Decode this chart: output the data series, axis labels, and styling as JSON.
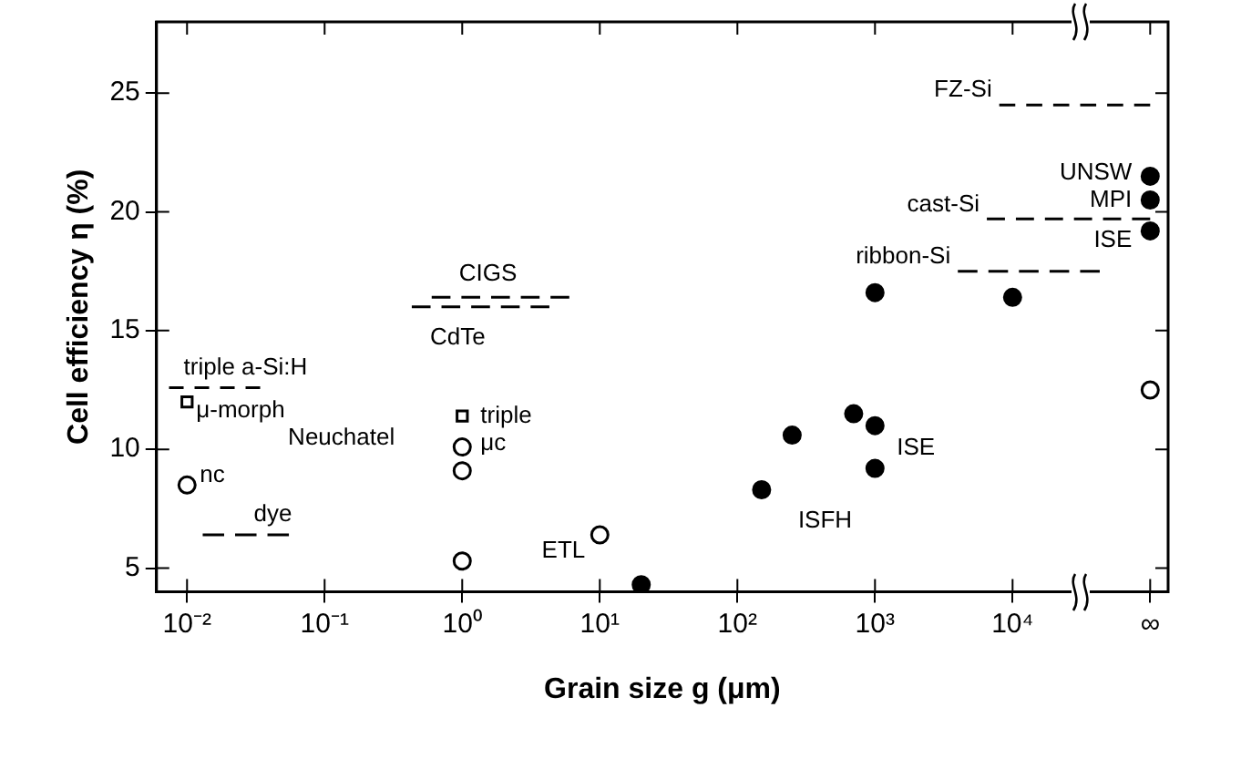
{
  "chart_data": {
    "type": "scatter",
    "xlabel": "Grain size g (μm)",
    "ylabel": "Cell efficiency η (%)",
    "log": "x",
    "xlim": [
      0.006,
      135000
    ],
    "xticks": [
      {
        "value": 0.01,
        "label": "10⁻²"
      },
      {
        "value": 0.1,
        "label": "10⁻¹"
      },
      {
        "value": 1,
        "label": "10⁰"
      },
      {
        "value": 10,
        "label": "10¹"
      },
      {
        "value": 100,
        "label": "10²"
      },
      {
        "value": 1000,
        "label": "10³"
      },
      {
        "value": 10000,
        "label": "10⁴"
      },
      {
        "value": 100000,
        "label": "∞"
      }
    ],
    "ylim": [
      4,
      28
    ],
    "yticks": [
      5,
      10,
      15,
      20,
      25
    ],
    "grid": false,
    "legend": false,
    "series": [
      {
        "marker": "circle",
        "color": "#000000",
        "x": [
          20,
          150,
          250,
          700,
          1000,
          1000,
          1000,
          10000,
          100000,
          100000,
          100000
        ],
        "values": [
          4.3,
          8.3,
          10.6,
          11.5,
          11.0,
          9.2,
          16.6,
          16.4,
          21.5,
          20.5,
          19.2
        ]
      },
      {
        "marker": "circle",
        "color": "#ffffff",
        "x": [
          0.01,
          1,
          1,
          1,
          10,
          100000
        ],
        "values": [
          8.5,
          10.1,
          9.1,
          5.3,
          6.4,
          12.5
        ]
      },
      {
        "marker": "square",
        "color": "#ffffff",
        "x": [
          0.01,
          1
        ],
        "values": [
          12.0,
          11.4
        ]
      },
      {
        "type": "line",
        "marker": "none",
        "line_style": "dashed",
        "color": "#000000",
        "x": [
          0.0074,
          0.034
        ],
        "values": [
          12.6,
          12.6
        ]
      },
      {
        "type": "line",
        "marker": "none",
        "line_style": "dashed",
        "color": "#000000",
        "x": [
          0.6,
          6
        ],
        "values": [
          16.4,
          16.4
        ]
      },
      {
        "type": "line",
        "marker": "none",
        "line_style": "dashed",
        "color": "#000000",
        "x": [
          0.43,
          4.3
        ],
        "values": [
          16.0,
          16.0
        ]
      },
      {
        "type": "line",
        "marker": "none",
        "line_style": "dashed",
        "color": "#000000",
        "x": [
          0.013,
          0.055
        ],
        "values": [
          6.4,
          6.4
        ]
      },
      {
        "type": "line",
        "marker": "none",
        "line_style": "dashed",
        "color": "#000000",
        "x": [
          8000,
          100000
        ],
        "values": [
          24.5,
          24.5
        ]
      },
      {
        "type": "line",
        "marker": "none",
        "line_style": "dashed",
        "color": "#000000",
        "x": [
          6500,
          100000
        ],
        "values": [
          19.7,
          19.7
        ]
      },
      {
        "type": "line",
        "marker": "none",
        "line_style": "dashed",
        "color": "#000000",
        "x": [
          4000,
          43000
        ],
        "values": [
          17.5,
          17.5
        ]
      }
    ],
    "annotations": [
      {
        "text": "μ-morph",
        "x": 0.01,
        "y": 12.0
      },
      {
        "text": "nc",
        "x": 0.01,
        "y": 8.5
      },
      {
        "text": "triple",
        "x": 1,
        "y": 11.4
      },
      {
        "text": "μc",
        "x": 1,
        "y": 10.1
      },
      {
        "text": "ETL",
        "x": 10,
        "y": 6.4
      },
      {
        "text": "ISFH",
        "x": 150,
        "y": 8.3
      },
      {
        "text": "ISE",
        "x": 1000,
        "y": 9.2
      },
      {
        "text": "UNSW",
        "x": 100000,
        "y": 21.5
      },
      {
        "text": "MPI",
        "x": 100000,
        "y": 20.5
      },
      {
        "text": "ISE",
        "x": 100000,
        "y": 19.2
      },
      {
        "text": "triple a-Si:H",
        "x": 0.0074,
        "y": 12.6
      },
      {
        "text": "CIGS",
        "x": 0.6,
        "y": 16.4
      },
      {
        "text": "CdTe",
        "x": 0.43,
        "y": 16.0
      },
      {
        "text": "dye",
        "x": 0.013,
        "y": 6.4
      },
      {
        "text": "FZ-Si",
        "x": 8000,
        "y": 24.5
      },
      {
        "text": "cast-Si",
        "x": 6500,
        "y": 19.7
      },
      {
        "text": "ribbon-Si",
        "x": 4000,
        "y": 17.5
      },
      "Neuchatel"
    ]
  }
}
